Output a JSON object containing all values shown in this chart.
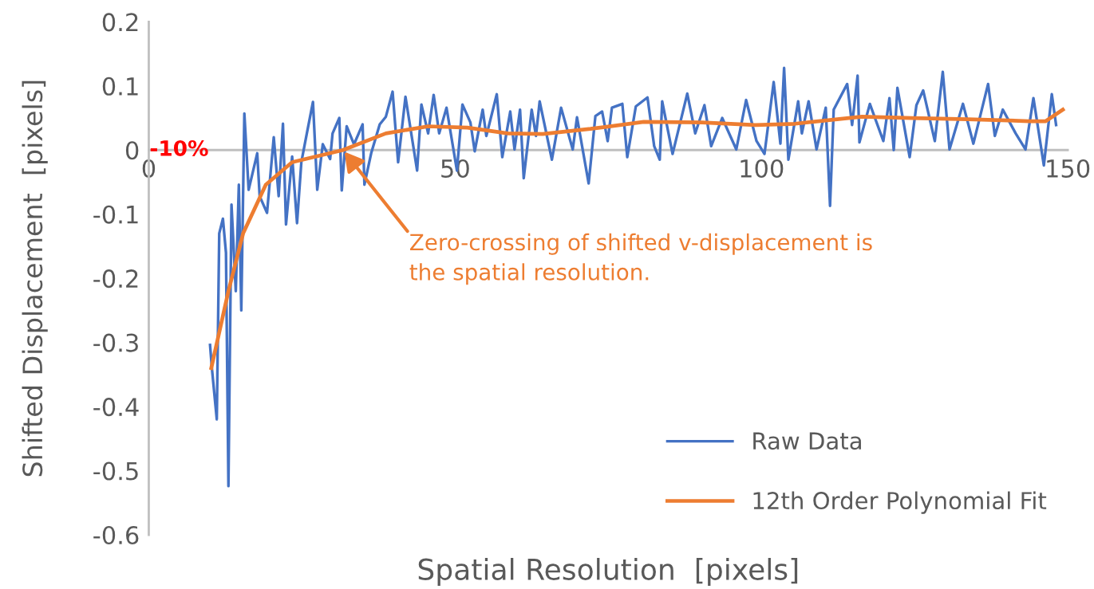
{
  "chart_data": {
    "type": "line",
    "xlabel": "Spatial Resolution  [pixels]",
    "ylabel": "Shifted Displacement  [pixels]",
    "xlim": [
      0,
      150
    ],
    "ylim": [
      -0.6,
      0.2
    ],
    "xticks": [
      0,
      50,
      100,
      150
    ],
    "yticks": [
      {
        "value": -0.6,
        "label": "-0.6"
      },
      {
        "value": -0.5,
        "label": "-0.5"
      },
      {
        "value": -0.4,
        "label": "-0.4"
      },
      {
        "value": -0.3,
        "label": "-0.3"
      },
      {
        "value": -0.2,
        "label": "-0.2"
      },
      {
        "value": -0.1,
        "label": "-0.1"
      },
      {
        "value": 0,
        "label": "0"
      },
      {
        "value": 0.1,
        "label": "0.1"
      },
      {
        "value": 0.2,
        "label": "0.2"
      }
    ],
    "grid": false,
    "legend": "bottom right",
    "line_style": "solid",
    "marker": "none",
    "annotations": [
      "-10%",
      {
        "text": "Zero-crossing of shifted v-displacement is\nthe spatial resolution.",
        "x": 31.7,
        "y": 0
      }
    ],
    "series": [
      {
        "name": "Raw Data",
        "color": "#4472c4",
        "x": [
          10.0,
          10.3,
          11.1,
          11.5,
          12.1,
          12.6,
          13.0,
          13.5,
          14.2,
          14.7,
          15.1,
          15.6,
          16.3,
          17.7,
          18.1,
          19.3,
          20.4,
          21.2,
          21.9,
          22.4,
          23.4,
          24.2,
          24.9,
          25.8,
          26.8,
          27.5,
          28.4,
          29.6,
          30.0,
          31.1,
          31.5,
          32.3,
          33.5,
          34.9,
          35.2,
          36.3,
          37.7,
          38.7,
          39.8,
          40.7,
          41.9,
          43.8,
          44.5,
          45.6,
          46.5,
          47.4,
          48.6,
          50.3,
          51.2,
          52.5,
          53.2,
          54.5,
          55.1,
          56.8,
          57.7,
          59.0,
          59.7,
          60.6,
          61.2,
          62.5,
          63.2,
          63.8,
          65.8,
          67.3,
          69.2,
          69.9,
          71.8,
          72.9,
          74.0,
          74.9,
          75.6,
          77.3,
          78.1,
          79.5,
          81.4,
          82.5,
          83.4,
          83.8,
          85.5,
          87.9,
          89.2,
          90.7,
          91.8,
          93.6,
          95.9,
          97.5,
          99.2,
          100.5,
          102.0,
          103.1,
          103.7,
          104.4,
          106.0,
          106.6,
          107.7,
          109.0,
          110.5,
          111.2,
          111.8,
          114.0,
          114.8,
          115.7,
          116.0,
          117.7,
          119.9,
          120.9,
          121.6,
          122.2,
          124.2,
          125.3,
          126.4,
          128.3,
          129.6,
          130.7,
          132.9,
          134.6,
          137.0,
          138.1,
          139.4,
          141.5,
          143.1,
          144.4,
          146.1,
          147.4,
          148.1
        ],
        "values": [
          -0.304,
          -0.34,
          -0.42,
          -0.13,
          -0.107,
          -0.16,
          -0.524,
          -0.085,
          -0.22,
          -0.054,
          -0.25,
          0.057,
          -0.062,
          -0.005,
          -0.072,
          -0.098,
          0.02,
          -0.072,
          0.041,
          -0.116,
          -0.01,
          -0.114,
          -0.019,
          0.026,
          0.075,
          -0.062,
          0.009,
          -0.014,
          0.026,
          0.05,
          -0.063,
          0.037,
          0.009,
          0.04,
          -0.054,
          -0.005,
          0.04,
          0.052,
          0.091,
          -0.019,
          0.083,
          -0.032,
          0.071,
          0.026,
          0.086,
          0.026,
          0.066,
          -0.032,
          0.071,
          0.043,
          -0.002,
          0.063,
          0.022,
          0.087,
          -0.011,
          0.06,
          0.001,
          0.063,
          -0.044,
          0.063,
          0.022,
          0.076,
          -0.015,
          0.066,
          0.001,
          0.051,
          -0.052,
          0.053,
          0.06,
          0.014,
          0.066,
          0.072,
          -0.011,
          0.068,
          0.082,
          0.006,
          -0.015,
          0.076,
          -0.006,
          0.088,
          0.026,
          0.07,
          0.006,
          0.05,
          0.001,
          0.078,
          0.014,
          -0.006,
          0.106,
          0.01,
          0.128,
          -0.015,
          0.076,
          0.026,
          0.076,
          0.001,
          0.066,
          -0.087,
          0.063,
          0.103,
          0.039,
          0.116,
          0.012,
          0.072,
          0.014,
          0.081,
          0.0,
          0.097,
          -0.011,
          0.07,
          0.093,
          0.014,
          0.122,
          0.001,
          0.072,
          0.01,
          0.103,
          0.022,
          0.063,
          0.026,
          0.001,
          0.081,
          -0.024,
          0.087,
          0.039
        ]
      },
      {
        "name": "12th Order Polynomial Fit",
        "color": "#ed7d31",
        "x": [
          10.2,
          13.0,
          15.4,
          19.1,
          23.4,
          31.7,
          38.7,
          45.6,
          52.0,
          58.6,
          64.3,
          72.1,
          80.8,
          90.3,
          99.0,
          105.5,
          116.4,
          124.6,
          133.7,
          143.8,
          146.4,
          149.2
        ],
        "values": [
          -0.34,
          -0.22,
          -0.13,
          -0.054,
          -0.019,
          0.0,
          0.026,
          0.037,
          0.035,
          0.026,
          0.025,
          0.033,
          0.044,
          0.043,
          0.039,
          0.041,
          0.052,
          0.05,
          0.048,
          0.045,
          0.045,
          0.063
        ]
      }
    ]
  }
}
